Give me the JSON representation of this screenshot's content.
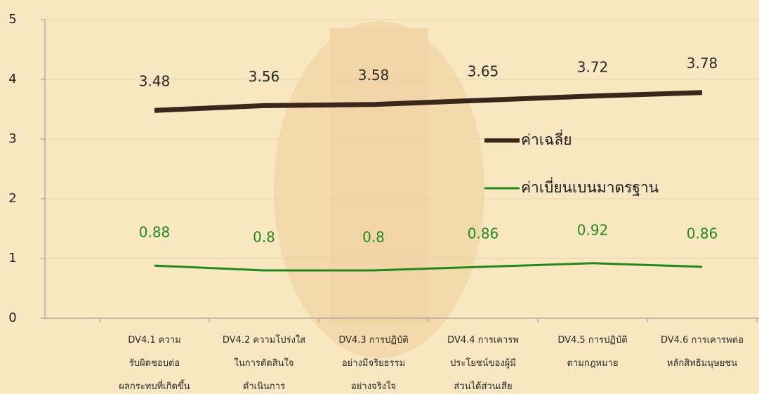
{
  "chart_data": {
    "type": "line",
    "categories": [
      null,
      "DV4.1 ความ\nรับผิดชอบต่อ\nผลกระทบที่เกิดขึ้น",
      "DV4.2 ความโปร่งใส\nในการตัดสินใจ\nดำเนินการ",
      "DV4.3 การปฏิบัติ\nอย่างมีจริยธรรม\nอย่างจริงใจ",
      "DV4.4 การเคารพ\nประโยชน์ของผู้มี\nส่วนได้ส่วนเสีย",
      "DV4.5 การปฏิบัติ\nตามกฎหมาย",
      "DV4.6 การเคารพต่อ\nหลักสิทธิมนุษยชน"
    ],
    "series": [
      {
        "name": "ค่าเฉลี่ย",
        "color": "#3a271b",
        "values": [
          null,
          3.48,
          3.56,
          3.58,
          3.65,
          3.72,
          3.78
        ]
      },
      {
        "name": "ค่าเบี่ยนเบนมาตรฐาน",
        "color": "#1f8a1a",
        "values": [
          null,
          0.88,
          0.8,
          0.8,
          0.86,
          0.92,
          0.86
        ]
      }
    ],
    "ylim": [
      0,
      5
    ],
    "yticks": [
      0,
      1,
      2,
      3,
      4,
      5
    ],
    "grid": true,
    "legend": "right"
  }
}
